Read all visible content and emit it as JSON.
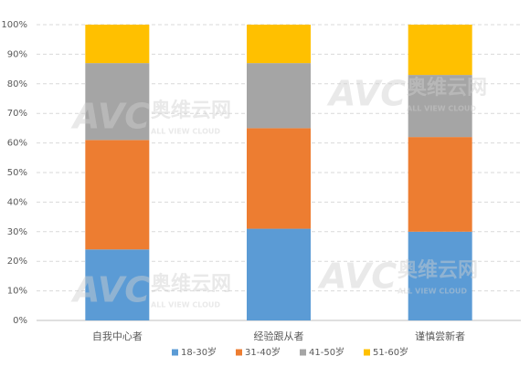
{
  "chart_data": {
    "type": "stacked_bar",
    "categories": [
      "自我中心者",
      "经验跟从者",
      "谨慎尝新者"
    ],
    "series": [
      {
        "name": "18-30岁",
        "color": "#5b9bd5",
        "values": [
          24,
          31,
          30
        ]
      },
      {
        "name": "31-40岁",
        "color": "#ed7d31",
        "values": [
          37,
          34,
          32
        ]
      },
      {
        "name": "41-50岁",
        "color": "#a5a5a5",
        "values": [
          26,
          22,
          21
        ]
      },
      {
        "name": "51-60岁",
        "color": "#ffc000",
        "values": [
          13,
          13,
          17
        ]
      }
    ],
    "ylim": [
      0,
      100
    ],
    "yticks": [
      {
        "value": 0,
        "label": "0%"
      },
      {
        "value": 10,
        "label": "10%"
      },
      {
        "value": 20,
        "label": "20%"
      },
      {
        "value": 30,
        "label": "30%"
      },
      {
        "value": 40,
        "label": "40%"
      },
      {
        "value": 50,
        "label": "50%"
      },
      {
        "value": 60,
        "label": "60%"
      },
      {
        "value": 70,
        "label": "70%"
      },
      {
        "value": 80,
        "label": "80%"
      },
      {
        "value": 90,
        "label": "90%"
      },
      {
        "value": 100,
        "label": "100%"
      }
    ],
    "grid": true,
    "legend": "bottom",
    "watermark": {
      "logo": "AVC",
      "name": "奥维云网",
      "slogan": "ALL VIEW CLOUD"
    }
  }
}
